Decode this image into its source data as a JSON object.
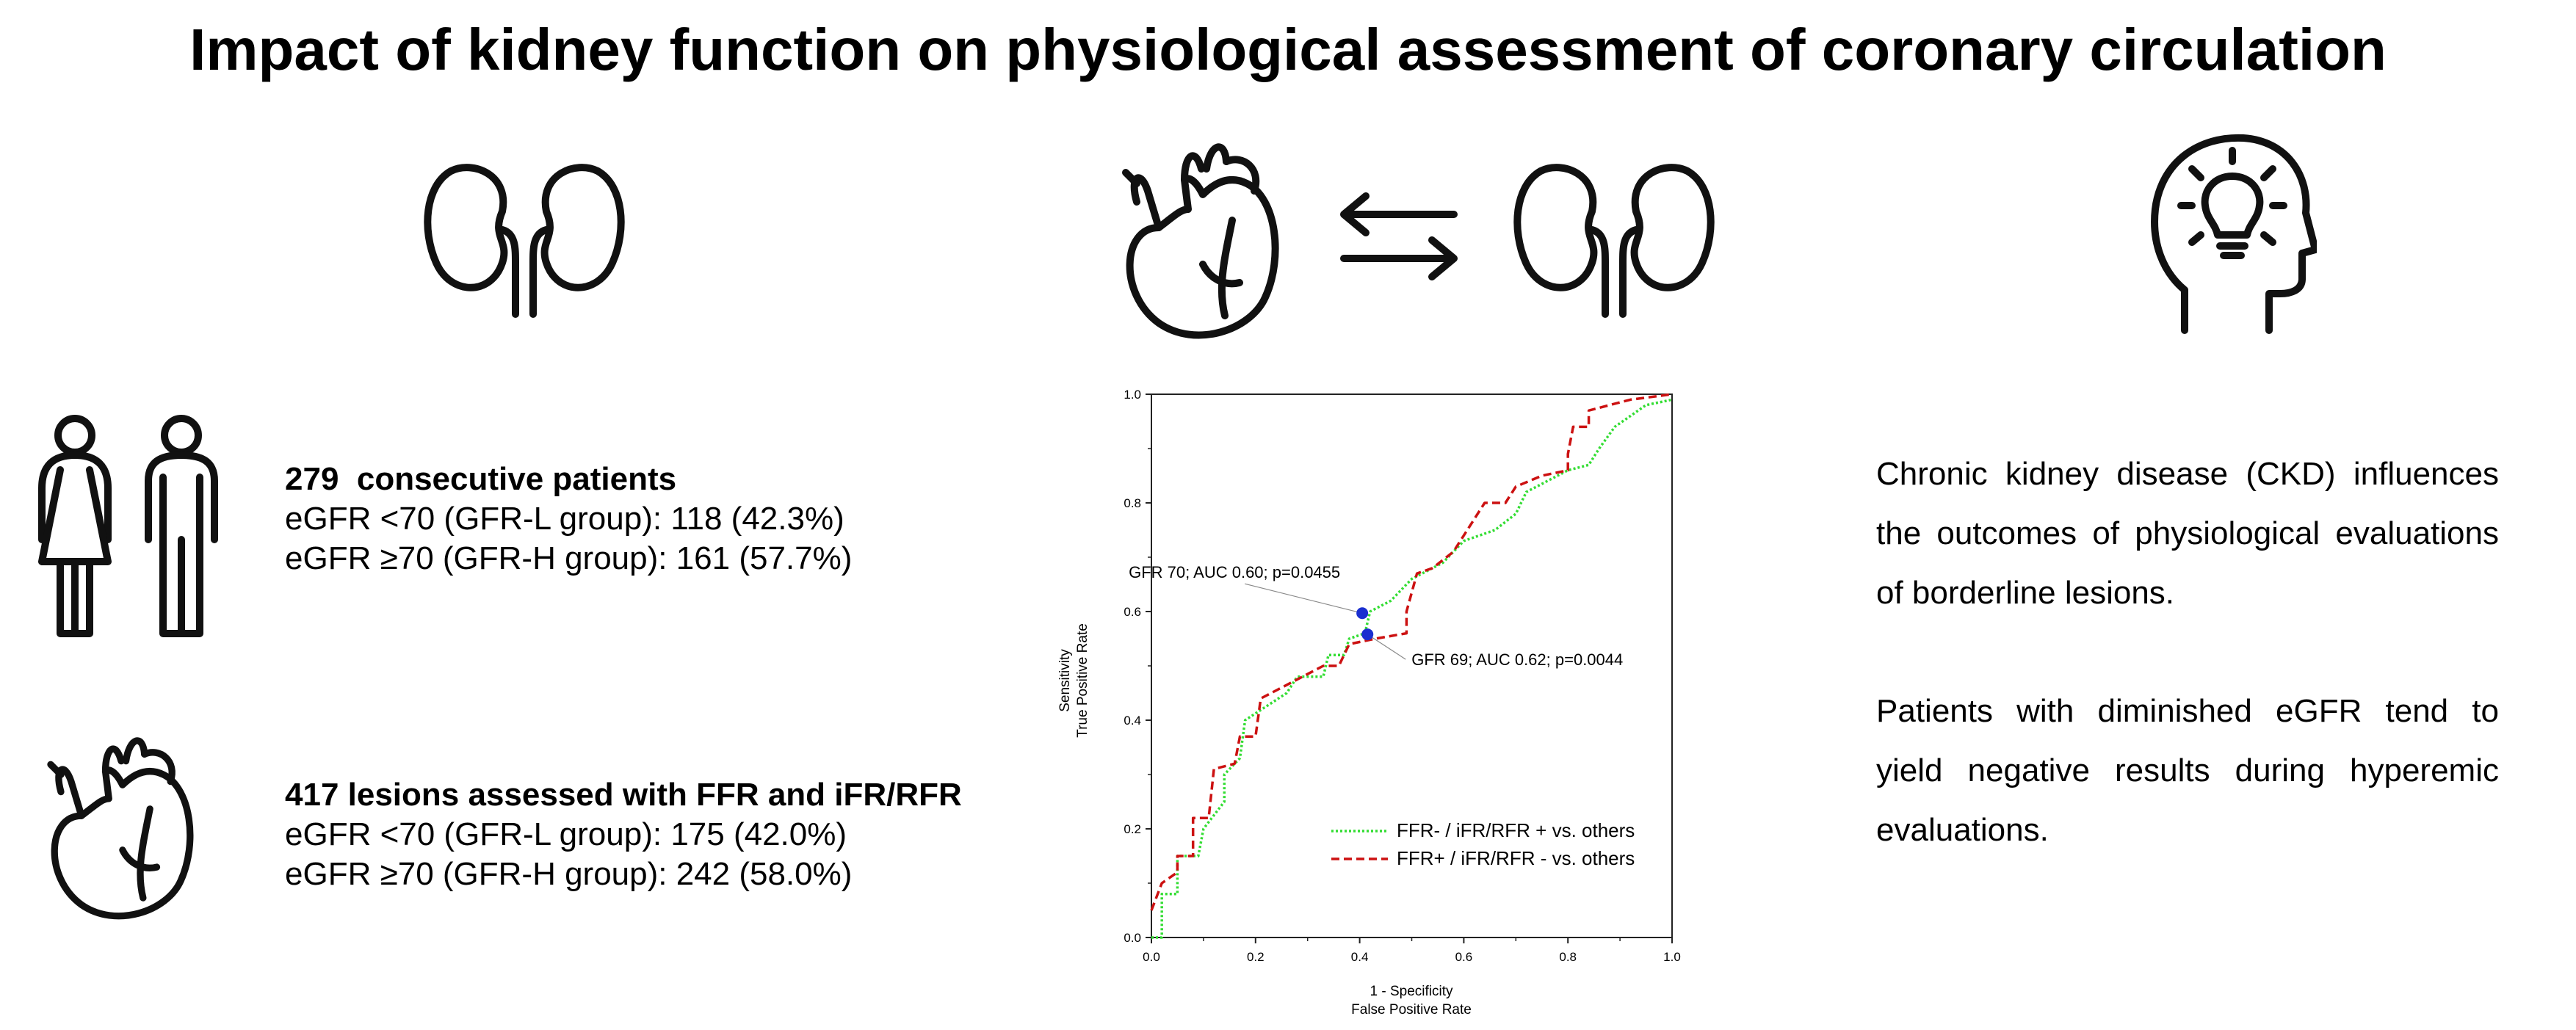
{
  "title": "Impact of kidney function on physiological assessment of coronary circulation",
  "icons": {
    "kidneys_left": "kidneys-icon",
    "heart_center": "heart-icon",
    "exchange_arrows": "bidirectional-arrows-icon",
    "kidneys_center": "kidneys-icon",
    "head_idea": "head-lightbulb-icon",
    "people": "woman-man-icon",
    "heart_lower": "heart-icon"
  },
  "patients": {
    "count_label": "279  consecutive patients",
    "low_group": "eGFR <70 (GFR-L group): 118 (42.3%)",
    "high_group": "eGFR ≥70 (GFR-H group): 161 (57.7%)"
  },
  "lesions": {
    "count_label": "417 lesions assessed with FFR and iFR/RFR",
    "low_group": "eGFR <70 (GFR-L group): 175 (42.0%)",
    "high_group": "eGFR ≥70 (GFR-H group): 242 (58.0%)"
  },
  "takeaway": {
    "paragraph1": "Chronic kidney disease (CKD) influences the outcomes of physiological evaluations of borderline lesions.",
    "paragraph2": "Patients with diminished eGFR tend to yield negative results during hyperemic evaluations."
  },
  "chart_data": {
    "type": "line",
    "xlabel": "1 - Specificity",
    "xlabel2": "False Positive Rate",
    "ylabel": "Sensitivity",
    "ylabel2": "True Positive Rate",
    "xlim": [
      0,
      1
    ],
    "ylim": [
      0,
      1
    ],
    "ticks": [
      0.0,
      0.2,
      0.4,
      0.6,
      0.8,
      1.0
    ],
    "tick_labels": [
      "0.0",
      "0.2",
      "0.4",
      "0.6",
      "0.8",
      "1.0"
    ],
    "legend_position": "bottom-right",
    "series": [
      {
        "name": "FFR- / iFR/RFR + vs. others",
        "color": "#33dd33",
        "dash": "dotted",
        "points": [
          [
            0,
            0
          ],
          [
            0.02,
            0
          ],
          [
            0.02,
            0.08
          ],
          [
            0.05,
            0.08
          ],
          [
            0.05,
            0.15
          ],
          [
            0.09,
            0.15
          ],
          [
            0.1,
            0.2
          ],
          [
            0.14,
            0.25
          ],
          [
            0.14,
            0.3
          ],
          [
            0.17,
            0.33
          ],
          [
            0.18,
            0.4
          ],
          [
            0.26,
            0.45
          ],
          [
            0.28,
            0.48
          ],
          [
            0.33,
            0.48
          ],
          [
            0.34,
            0.52
          ],
          [
            0.37,
            0.52
          ],
          [
            0.38,
            0.55
          ],
          [
            0.41,
            0.56
          ],
          [
            0.42,
            0.6
          ],
          [
            0.46,
            0.62
          ],
          [
            0.5,
            0.66
          ],
          [
            0.56,
            0.69
          ],
          [
            0.6,
            0.73
          ],
          [
            0.66,
            0.75
          ],
          [
            0.7,
            0.78
          ],
          [
            0.72,
            0.82
          ],
          [
            0.8,
            0.86
          ],
          [
            0.84,
            0.87
          ],
          [
            0.86,
            0.9
          ],
          [
            0.89,
            0.94
          ],
          [
            0.92,
            0.96
          ],
          [
            0.95,
            0.98
          ],
          [
            1,
            0.99
          ]
        ]
      },
      {
        "name": "FFR+ / iFR/RFR - vs. others",
        "color": "#cc1111",
        "dash": "dashed",
        "points": [
          [
            0,
            0.05
          ],
          [
            0.02,
            0.1
          ],
          [
            0.05,
            0.12
          ],
          [
            0.05,
            0.15
          ],
          [
            0.08,
            0.15
          ],
          [
            0.08,
            0.22
          ],
          [
            0.11,
            0.22
          ],
          [
            0.12,
            0.31
          ],
          [
            0.16,
            0.32
          ],
          [
            0.17,
            0.37
          ],
          [
            0.2,
            0.37
          ],
          [
            0.21,
            0.44
          ],
          [
            0.25,
            0.46
          ],
          [
            0.31,
            0.49
          ],
          [
            0.33,
            0.5
          ],
          [
            0.36,
            0.5
          ],
          [
            0.38,
            0.54
          ],
          [
            0.43,
            0.55
          ],
          [
            0.49,
            0.56
          ],
          [
            0.49,
            0.6
          ],
          [
            0.51,
            0.67
          ],
          [
            0.54,
            0.68
          ],
          [
            0.58,
            0.71
          ],
          [
            0.62,
            0.77
          ],
          [
            0.64,
            0.8
          ],
          [
            0.68,
            0.8
          ],
          [
            0.7,
            0.83
          ],
          [
            0.75,
            0.85
          ],
          [
            0.8,
            0.86
          ],
          [
            0.8,
            0.89
          ],
          [
            0.81,
            0.94
          ],
          [
            0.84,
            0.94
          ],
          [
            0.84,
            0.97
          ],
          [
            0.88,
            0.98
          ],
          [
            0.92,
            0.99
          ],
          [
            1,
            1
          ]
        ]
      }
    ],
    "annotations": [
      {
        "text": "GFR 70; AUC 0.60; p=0.0455",
        "point": [
          0.405,
          0.597
        ],
        "label_anchor": "end"
      },
      {
        "text": "GFR 69; AUC 0.62; p=0.0044",
        "point": [
          0.415,
          0.558
        ],
        "label_anchor": "start"
      }
    ],
    "marker_color": "#1a2fd0"
  }
}
